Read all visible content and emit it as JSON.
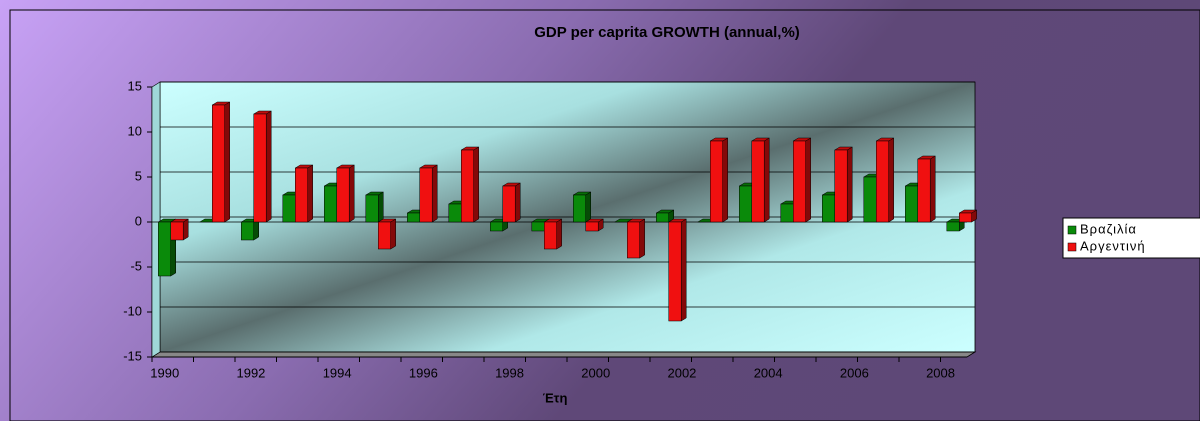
{
  "chart_data": {
    "type": "bar",
    "title": "GDP per caprita GROWTH (annual,%)",
    "x_label": "Έτη",
    "categories": [
      "1990",
      null,
      "1992",
      null,
      "1994",
      null,
      "1996",
      null,
      "1998",
      null,
      "2000",
      null,
      "2002",
      null,
      "2004",
      null,
      "2006",
      null,
      "2008",
      null
    ],
    "series": [
      {
        "name": "Βραζιλία",
        "color": "#0a8a0a",
        "values": [
          -6,
          0,
          -2,
          3,
          4,
          3,
          1,
          2,
          -1,
          -1,
          3,
          0,
          1,
          0,
          4,
          2,
          3,
          5,
          4,
          -1
        ]
      },
      {
        "name": "Αργεντινή",
        "color": "#f01010",
        "values": [
          -2,
          13,
          12,
          6,
          6,
          -3,
          6,
          8,
          4,
          -3,
          -1,
          -4,
          -11,
          9,
          9,
          9,
          8,
          9,
          7,
          1
        ]
      }
    ],
    "ylim": [
      -15,
      15
    ],
    "yticks": [
      -15,
      -10,
      -5,
      0,
      5,
      10,
      15
    ],
    "grid": true,
    "legend": "right"
  }
}
